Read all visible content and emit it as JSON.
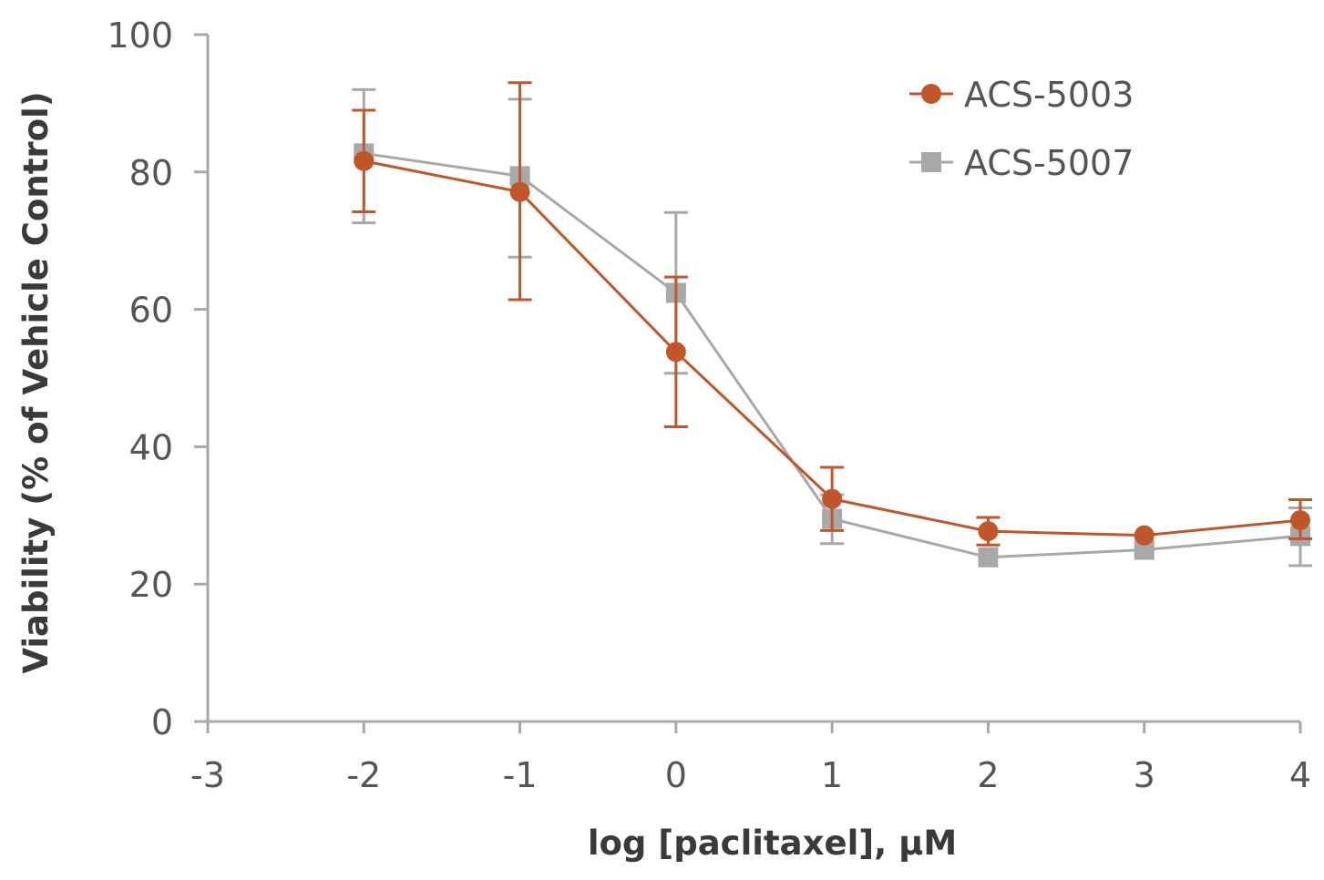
{
  "chart_data": {
    "type": "line",
    "xlabel": "log [paclitaxel], μM",
    "ylabel": "Viability (% of Vehicle Control)",
    "xlim": [
      -3,
      4
    ],
    "ylim": [
      0,
      100
    ],
    "x_ticks": [
      -3,
      -2,
      -1,
      0,
      1,
      2,
      3,
      4
    ],
    "y_ticks": [
      0,
      20,
      40,
      60,
      80,
      100
    ],
    "x_tick_labels": [
      "-3",
      "-2",
      "-1",
      "0",
      "1",
      "2",
      "3",
      "4"
    ],
    "y_tick_labels": [
      "0",
      "20",
      "40",
      "60",
      "80",
      "100"
    ],
    "grid": false,
    "legend_position": "top-right",
    "series": [
      {
        "name": "ACS-5003",
        "color": "#c0562a",
        "marker": "circle",
        "x": [
          -2,
          -1,
          0,
          1,
          2,
          3,
          4
        ],
        "y": [
          81.6,
          77.1,
          53.8,
          32.4,
          27.7,
          27.1,
          29.3
        ],
        "err_low": [
          74.2,
          61.4,
          42.9,
          27.8,
          25.7,
          null,
          26.6
        ],
        "err_high": [
          89.0,
          93.0,
          64.7,
          37.0,
          29.7,
          null,
          32.3
        ]
      },
      {
        "name": "ACS-5007",
        "color": "#a8a8a8",
        "marker": "square",
        "x": [
          -2,
          -1,
          0,
          1,
          2,
          3,
          4
        ],
        "y": [
          82.7,
          79.4,
          62.4,
          29.5,
          23.9,
          25.0,
          27.0
        ],
        "err_low": [
          72.6,
          67.6,
          50.7,
          25.9,
          null,
          null,
          22.7
        ],
        "err_high": [
          92.0,
          90.6,
          74.1,
          33.0,
          null,
          null,
          31.1
        ]
      }
    ]
  }
}
